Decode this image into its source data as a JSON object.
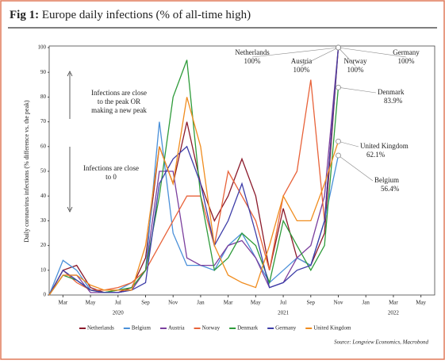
{
  "chart_data": {
    "type": "line",
    "title_prefix": "Fig 1:",
    "title": "Europe daily infections (% of all-time high)",
    "y_label": "Daily coronavirus infections (% difference vs. the peak)",
    "source": "Source: Longview Economics, Macrobond",
    "x": [
      "2020-02",
      "2020-03",
      "2020-04",
      "2020-05",
      "2020-06",
      "2020-07",
      "2020-08",
      "2020-09",
      "2020-10",
      "2020-11",
      "2020-12",
      "2021-01",
      "2021-02",
      "2021-03",
      "2021-04",
      "2021-05",
      "2021-06",
      "2021-07",
      "2021-08",
      "2021-09",
      "2021-10",
      "2021-11"
    ],
    "xlim": [
      "2020-02",
      "2022-06"
    ],
    "xticks": [
      {
        "value": "2020-03",
        "label": "Mar"
      },
      {
        "value": "2020-05",
        "label": "May"
      },
      {
        "value": "2020-07",
        "label": "Jul"
      },
      {
        "value": "2020-09",
        "label": "Sep"
      },
      {
        "value": "2020-11",
        "label": "Nov"
      },
      {
        "value": "2021-01",
        "label": "Jan"
      },
      {
        "value": "2021-03",
        "label": "Mar"
      },
      {
        "value": "2021-05",
        "label": "May"
      },
      {
        "value": "2021-07",
        "label": "Jul"
      },
      {
        "value": "2021-09",
        "label": "Sep"
      },
      {
        "value": "2021-11",
        "label": "Nov"
      },
      {
        "value": "2022-01",
        "label": "Jan"
      },
      {
        "value": "2022-03",
        "label": "Mar"
      },
      {
        "value": "2022-05",
        "label": "May"
      }
    ],
    "year_labels": [
      {
        "value": "2020-07",
        "label": "2020"
      },
      {
        "value": "2021-07",
        "label": "2021"
      },
      {
        "value": "2022-03",
        "label": "2022"
      }
    ],
    "ylim": [
      0,
      100
    ],
    "yticks": [
      0,
      10,
      20,
      30,
      40,
      50,
      60,
      70,
      80,
      90,
      100
    ],
    "series": [
      {
        "name": "Netherlands",
        "color": "#8b1a2b",
        "values": [
          0,
          10,
          12,
          3,
          1,
          1,
          3,
          15,
          60,
          45,
          70,
          45,
          30,
          40,
          55,
          40,
          10,
          35,
          15,
          12,
          25,
          100
        ]
      },
      {
        "name": "Belgium",
        "color": "#4a90d9",
        "values": [
          0,
          14,
          10,
          2,
          1,
          2,
          5,
          10,
          70,
          25,
          12,
          12,
          10,
          20,
          25,
          15,
          5,
          10,
          15,
          12,
          30,
          56.4
        ]
      },
      {
        "name": "Austria",
        "color": "#7b3f9e",
        "values": [
          0,
          8,
          8,
          1,
          1,
          1,
          2,
          10,
          50,
          50,
          15,
          12,
          12,
          20,
          22,
          15,
          3,
          5,
          15,
          20,
          40,
          100
        ]
      },
      {
        "name": "Norway",
        "color": "#e8633a",
        "values": [
          0,
          10,
          5,
          2,
          2,
          3,
          5,
          10,
          20,
          30,
          40,
          40,
          20,
          50,
          40,
          30,
          10,
          40,
          50,
          87,
          30,
          100
        ]
      },
      {
        "name": "Denmark",
        "color": "#2e9b3a",
        "values": [
          0,
          8,
          6,
          2,
          1,
          2,
          3,
          10,
          40,
          80,
          95,
          40,
          10,
          15,
          25,
          20,
          5,
          30,
          20,
          10,
          20,
          83.9
        ]
      },
      {
        "name": "Germany",
        "color": "#3d3da8",
        "values": [
          0,
          10,
          6,
          2,
          1,
          1,
          2,
          5,
          45,
          55,
          60,
          45,
          20,
          30,
          45,
          25,
          3,
          5,
          10,
          12,
          30,
          100
        ]
      },
      {
        "name": "United Kingdom",
        "color": "#f08c1e",
        "values": [
          0,
          8,
          8,
          4,
          2,
          2,
          2,
          20,
          60,
          45,
          80,
          60,
          20,
          8,
          5,
          3,
          20,
          40,
          30,
          30,
          45,
          62.1
        ]
      }
    ],
    "annotations": [
      {
        "text": "Netherlands",
        "value_text": "100%"
      },
      {
        "text": "Austria",
        "value_text": "100%"
      },
      {
        "text": "Norway",
        "value_text": "100%"
      },
      {
        "text": "Germany",
        "value_text": "100%"
      },
      {
        "text": "Denmark",
        "value_text": "83.9%"
      },
      {
        "text": "United Kingdom",
        "value_text": "62.1%"
      },
      {
        "text": "Belgium",
        "value_text": "56.4%"
      }
    ],
    "notes": [
      {
        "lines": [
          "Infections are close",
          "to the peak OR",
          "making a new peak"
        ]
      },
      {
        "lines": [
          "Infections are close",
          "to 0"
        ]
      }
    ]
  }
}
